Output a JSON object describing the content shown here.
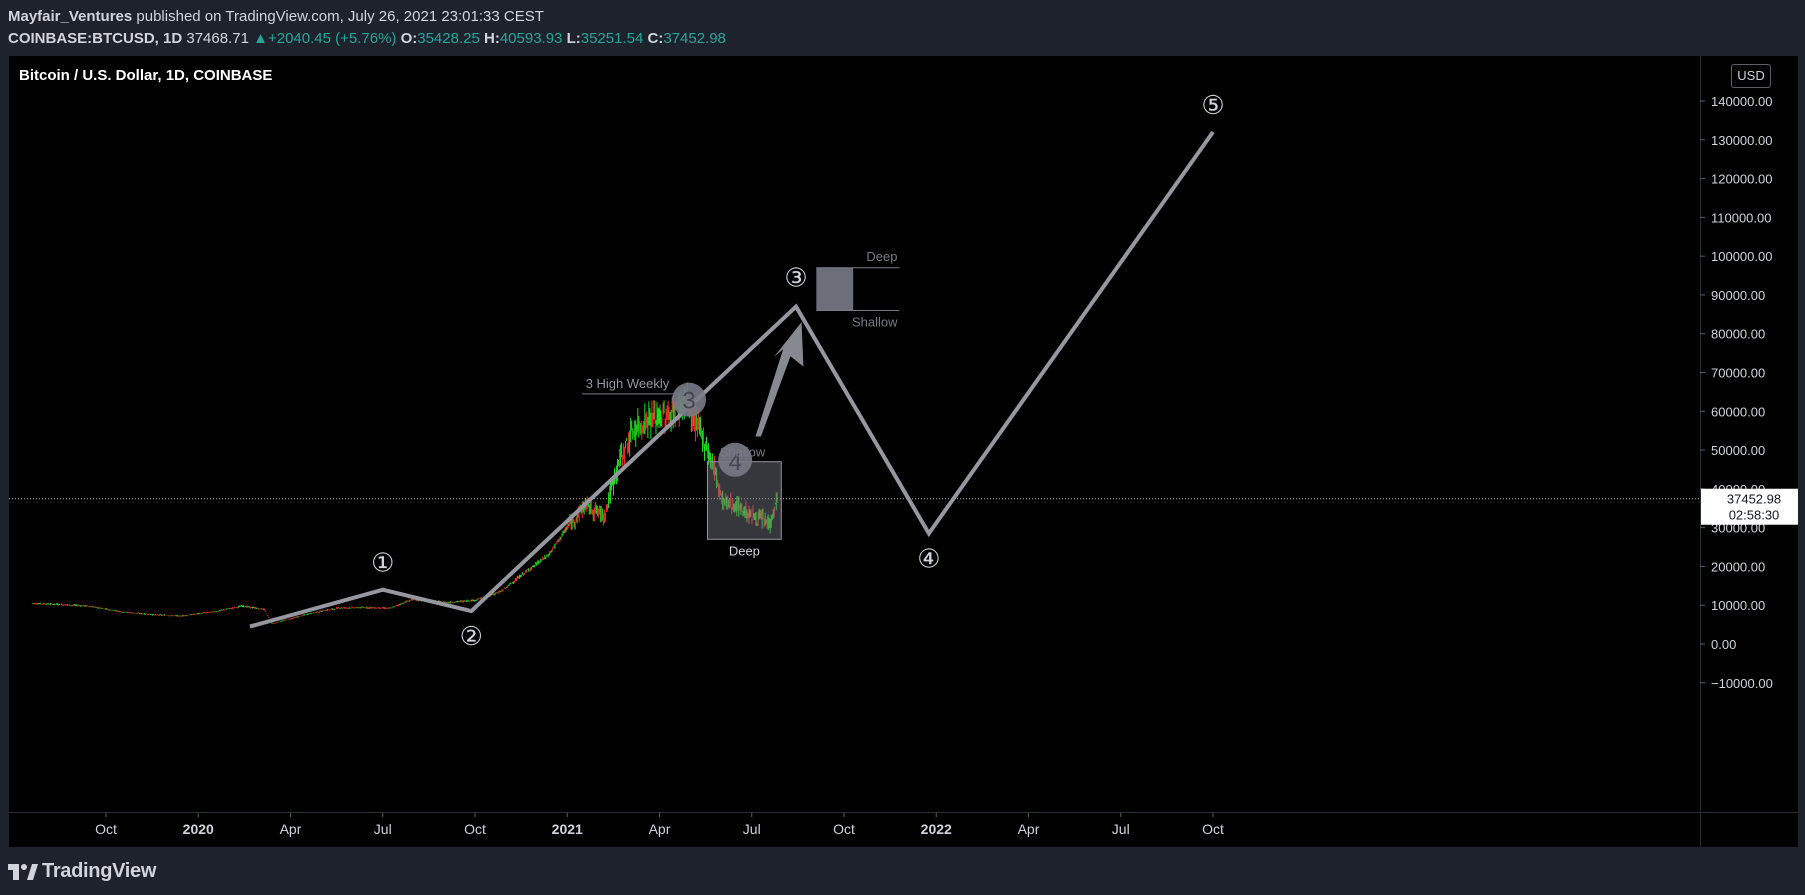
{
  "header": {
    "author": "Mayfair_Ventures",
    "published": "published on TradingView.com, July 26, 2021 23:01:33 CEST",
    "symbol": "COINBASE:BTCUSD, 1D",
    "last": "37468.71",
    "change": "+2040.45 (+5.76%)",
    "o_label": "O:",
    "o_value": "35428.25",
    "h_label": "H:",
    "h_value": "40593.93",
    "l_label": "L:",
    "l_value": "35251.54",
    "c_label": "C:",
    "c_value": "37452.98"
  },
  "legend_title": "Bitcoin / U.S. Dollar, 1D, COINBASE",
  "currency_button": "USD",
  "footer_brand": "TradingView",
  "colors": {
    "up": "#26a69a",
    "candle_up": "#1ee01e",
    "candle_down": "#ff2a2a",
    "wave": "#9598a1",
    "axis_text": "#d1d4dc",
    "price_label_bg": "#ffffff"
  },
  "chart_data": {
    "type": "line",
    "title": "Bitcoin / U.S. Dollar, 1D, COINBASE",
    "x_ticks": [
      {
        "label": "Oct",
        "t": 2019.75,
        "bold": false
      },
      {
        "label": "2020",
        "t": 2020.0,
        "bold": true
      },
      {
        "label": "Apr",
        "t": 2020.25,
        "bold": false
      },
      {
        "label": "Jul",
        "t": 2020.5,
        "bold": false
      },
      {
        "label": "Oct",
        "t": 2020.75,
        "bold": false
      },
      {
        "label": "2021",
        "t": 2021.0,
        "bold": true
      },
      {
        "label": "Apr",
        "t": 2021.25,
        "bold": false
      },
      {
        "label": "Jul",
        "t": 2021.5,
        "bold": false
      },
      {
        "label": "Oct",
        "t": 2021.75,
        "bold": false
      },
      {
        "label": "2022",
        "t": 2022.0,
        "bold": true
      },
      {
        "label": "Apr",
        "t": 2022.25,
        "bold": false
      },
      {
        "label": "Jul",
        "t": 2022.5,
        "bold": false
      },
      {
        "label": "Oct",
        "t": 2022.75,
        "bold": false
      }
    ],
    "y_ticks": [
      "140000.00",
      "130000.00",
      "120000.00",
      "110000.00",
      "100000.00",
      "90000.00",
      "80000.00",
      "70000.00",
      "60000.00",
      "50000.00",
      "40000.00",
      "30000.00",
      "20000.00",
      "10000.00",
      "0.00",
      "−10000.00"
    ],
    "y_tick_values": [
      140000,
      130000,
      120000,
      110000,
      100000,
      90000,
      80000,
      70000,
      60000,
      50000,
      40000,
      30000,
      20000,
      10000,
      0,
      -10000
    ],
    "last_price": "37452.98",
    "countdown": "02:58:30",
    "price_path": [
      [
        2019.55,
        10500
      ],
      [
        2019.62,
        10200
      ],
      [
        2019.7,
        9800
      ],
      [
        2019.8,
        8200
      ],
      [
        2019.87,
        7600
      ],
      [
        2019.95,
        7200
      ],
      [
        2020.05,
        8400
      ],
      [
        2020.12,
        9800
      ],
      [
        2020.18,
        8900
      ],
      [
        2020.2,
        5200
      ],
      [
        2020.3,
        7800
      ],
      [
        2020.38,
        9300
      ],
      [
        2020.45,
        9400
      ],
      [
        2020.52,
        9200
      ],
      [
        2020.58,
        11500
      ],
      [
        2020.68,
        10700
      ],
      [
        2020.75,
        11300
      ],
      [
        2020.82,
        13500
      ],
      [
        2020.88,
        18000
      ],
      [
        2020.95,
        23000
      ],
      [
        2021.0,
        30000
      ],
      [
        2021.05,
        36000
      ],
      [
        2021.1,
        33000
      ],
      [
        2021.14,
        47000
      ],
      [
        2021.18,
        55000
      ],
      [
        2021.22,
        58000
      ],
      [
        2021.28,
        59000
      ],
      [
        2021.32,
        63000
      ],
      [
        2021.36,
        55000
      ],
      [
        2021.4,
        45000
      ],
      [
        2021.42,
        37000
      ],
      [
        2021.47,
        35000
      ],
      [
        2021.5,
        33000
      ],
      [
        2021.53,
        32000
      ],
      [
        2021.55,
        31000
      ],
      [
        2021.57,
        37450
      ]
    ],
    "elliott_wave": {
      "points": [
        {
          "label": "①",
          "t": 2020.5,
          "v": 14000
        },
        {
          "label": "②",
          "t": 2020.74,
          "v": 8500
        },
        {
          "label": "③",
          "t": 2021.62,
          "v": 87000
        },
        {
          "label": "④",
          "t": 2021.98,
          "v": 28500
        },
        {
          "label": "⑤",
          "t": 2022.75,
          "v": 132000
        }
      ],
      "start": {
        "t": 2020.14,
        "v": 4500
      }
    },
    "annotations": {
      "high_weekly": "3 High Weekly",
      "circle3": "3",
      "circle4": "4",
      "box_top_label": "Shallow",
      "box_bottom_label": "Deep",
      "target_top_label": "Deep",
      "target_bottom_label": "Shallow"
    }
  }
}
